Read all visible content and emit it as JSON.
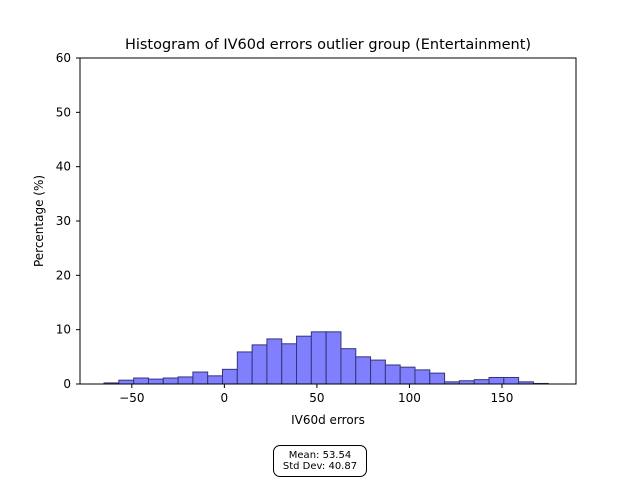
{
  "chart_data": {
    "type": "bar",
    "title": "Histogram of IV60d errors outlier group (Entertainment)",
    "xlabel": "IV60d errors",
    "ylabel": "Percentage (%)",
    "xlim": [
      -78,
      190
    ],
    "ylim": [
      0,
      60
    ],
    "x_ticks": [
      -50,
      0,
      50,
      100,
      150
    ],
    "y_ticks": [
      0,
      10,
      20,
      30,
      40,
      50,
      60
    ],
    "bin_edges": [
      -65,
      -57,
      -49,
      -41,
      -33,
      -25,
      -17,
      -9,
      -1,
      7,
      15,
      23,
      31,
      39,
      47,
      55,
      63,
      71,
      79,
      87,
      95,
      103,
      111,
      119,
      127,
      135,
      143,
      151,
      159,
      167,
      175
    ],
    "values": [
      0.2,
      0.7,
      1.1,
      0.9,
      1.1,
      1.3,
      2.2,
      1.5,
      2.7,
      5.9,
      7.2,
      8.3,
      7.4,
      8.8,
      9.6,
      9.6,
      6.5,
      5.0,
      4.4,
      3.5,
      3.1,
      2.6,
      2.0,
      0.4,
      0.6,
      0.8,
      1.2,
      1.2,
      0.4,
      0.1
    ],
    "bar_color": "#8080ff",
    "edge_color": "#34347a",
    "grid": false,
    "legend": false
  },
  "stats": {
    "mean": "Mean: 53.54",
    "std": "Std Dev: 40.87"
  }
}
